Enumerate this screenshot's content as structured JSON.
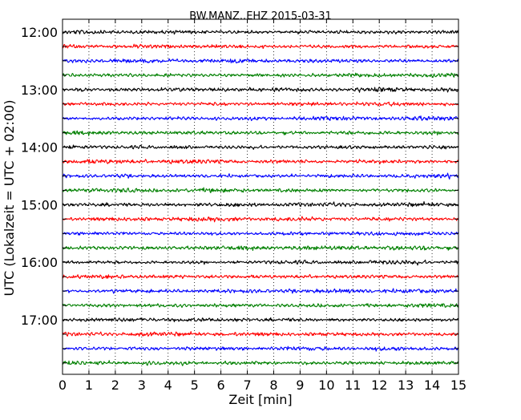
{
  "chart_data": {
    "type": "line",
    "title": "BW.MANZ..EHZ 2015-03-31",
    "xlabel": "Zeit  [min]",
    "ylabel": "UTC (Lokalzeit = UTC + 02:00)",
    "xlim": [
      0,
      15
    ],
    "x_ticks": [
      "0",
      "1",
      "2",
      "3",
      "4",
      "5",
      "6",
      "7",
      "8",
      "9",
      "10",
      "11",
      "12",
      "13",
      "14",
      "15"
    ],
    "y_ticks": [
      "12:00",
      "13:00",
      "14:00",
      "15:00",
      "16:00",
      "17:00"
    ],
    "grid": "vertical dotted at each minute",
    "trace_colors": [
      "#000000",
      "#ff0000",
      "#0000ff",
      "#008000"
    ],
    "traces": [
      {
        "start": "12:00",
        "color": "#000000"
      },
      {
        "start": "12:15",
        "color": "#ff0000"
      },
      {
        "start": "12:30",
        "color": "#0000ff"
      },
      {
        "start": "12:45",
        "color": "#008000"
      },
      {
        "start": "13:00",
        "color": "#000000"
      },
      {
        "start": "13:15",
        "color": "#ff0000"
      },
      {
        "start": "13:30",
        "color": "#0000ff"
      },
      {
        "start": "13:45",
        "color": "#008000"
      },
      {
        "start": "14:00",
        "color": "#000000"
      },
      {
        "start": "14:15",
        "color": "#ff0000"
      },
      {
        "start": "14:30",
        "color": "#0000ff"
      },
      {
        "start": "14:45",
        "color": "#008000"
      },
      {
        "start": "15:00",
        "color": "#000000"
      },
      {
        "start": "15:15",
        "color": "#ff0000"
      },
      {
        "start": "15:30",
        "color": "#0000ff"
      },
      {
        "start": "15:45",
        "color": "#008000"
      },
      {
        "start": "16:00",
        "color": "#000000"
      },
      {
        "start": "16:15",
        "color": "#ff0000"
      },
      {
        "start": "16:30",
        "color": "#0000ff"
      },
      {
        "start": "16:45",
        "color": "#008000"
      },
      {
        "start": "17:00",
        "color": "#000000"
      },
      {
        "start": "17:15",
        "color": "#ff0000"
      },
      {
        "start": "17:30",
        "color": "#0000ff"
      },
      {
        "start": "17:45",
        "color": "#008000"
      }
    ]
  }
}
